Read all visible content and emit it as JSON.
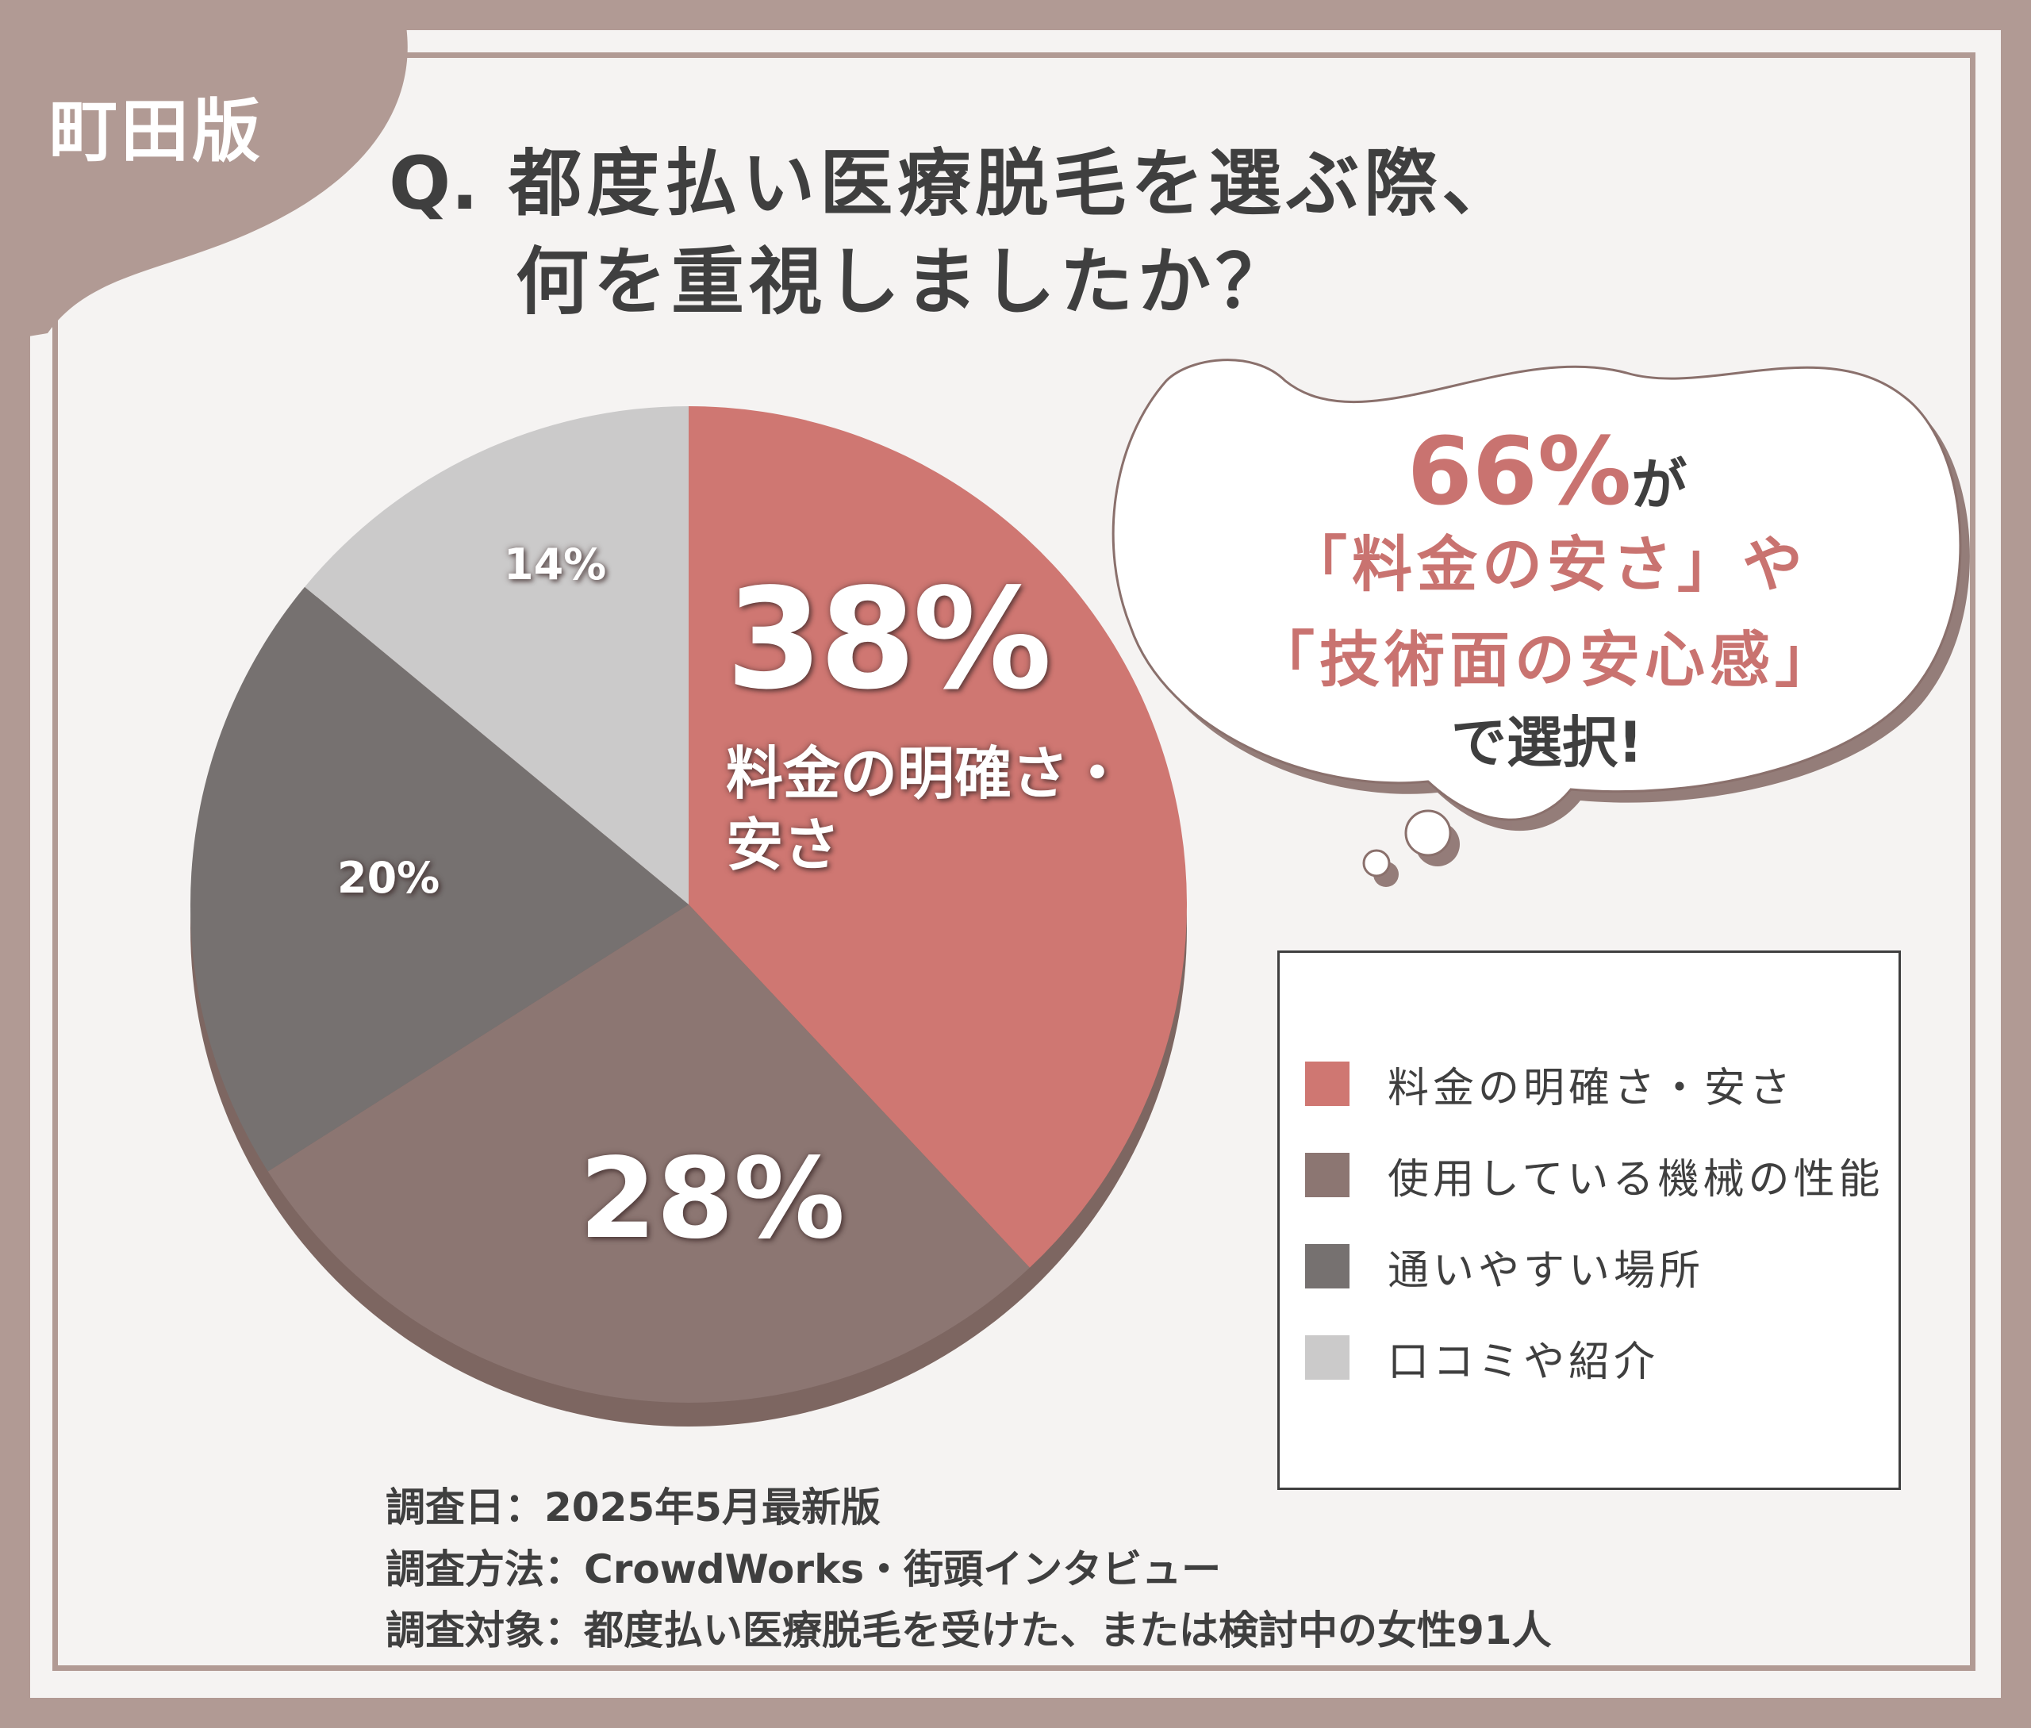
{
  "region_label": "町田版",
  "title": {
    "q_prefix": "Q.",
    "line1": "都度払い医療脱毛を選ぶ際、",
    "line2": "何を重視しましたか？"
  },
  "chart_data": {
    "type": "pie",
    "title": "Q.都度払い医療脱毛を選ぶ際、何を重視しましたか？",
    "categories": [
      "料金の明確さ・安さ",
      "使用している機械の性能",
      "通いやすい場所",
      "口コミや紹介"
    ],
    "values": [
      38,
      28,
      20,
      14
    ],
    "unit": "%",
    "labels": {
      "slice1_pct": "38%",
      "slice1_text": "料金の明確さ・安さ",
      "slice2_pct": "28%",
      "slice3_pct": "20%",
      "slice4_pct": "14%"
    },
    "colors": [
      "#cf7772",
      "#8c7672",
      "#767170",
      "#cbcaca"
    ],
    "legend_position": "right",
    "legend": [
      {
        "label": "料金の明確さ・安さ",
        "color": "#cf7772"
      },
      {
        "label": "使用している機械の性能",
        "color": "#8c7672"
      },
      {
        "label": "通いやすい場所",
        "color": "#767170"
      },
      {
        "label": "口コミや紹介",
        "color": "#cbcaca"
      }
    ]
  },
  "callout": {
    "percent": "66%",
    "particle": "が",
    "quote1": "「料金の安さ」",
    "quote1_suffix": "や",
    "quote2": "「技術面の安心感」",
    "ending": "で選択!"
  },
  "notes": {
    "line1": "調査日：2025年5月最新版",
    "line2": "調査方法：CrowdWorks・街頭インタビュー",
    "line3": "調査対象：都度払い医療脱毛を受けた、または検討中の女性91人"
  },
  "colors": {
    "frame": "#b19a94",
    "background": "#f5f3f2",
    "accent": "#c97370",
    "text": "#3f3f3f"
  }
}
